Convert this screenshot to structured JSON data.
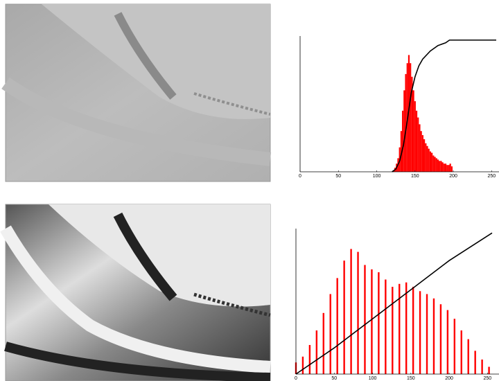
{
  "chart_data": [
    {
      "type": "bar",
      "x": [
        122,
        124,
        126,
        128,
        130,
        132,
        134,
        136,
        138,
        140,
        142,
        144,
        146,
        148,
        150,
        152,
        154,
        156,
        158,
        160,
        162,
        164,
        166,
        168,
        170,
        172,
        174,
        176,
        178,
        180,
        182,
        184,
        186,
        188,
        190,
        192,
        194,
        196,
        198
      ],
      "values": [
        1,
        3,
        6,
        10,
        18,
        30,
        45,
        60,
        72,
        80,
        86,
        80,
        70,
        60,
        52,
        45,
        40,
        35,
        30,
        27,
        24,
        21,
        19,
        17,
        15,
        14,
        12,
        11,
        10,
        9,
        8,
        8,
        7,
        6,
        6,
        5,
        5,
        6,
        4
      ],
      "color": "#ff0000",
      "line": {
        "x": [
          120,
          125,
          130,
          135,
          140,
          145,
          150,
          155,
          160,
          170,
          180,
          190,
          195,
          200,
          256
        ],
        "values": [
          0,
          2,
          8,
          20,
          38,
          58,
          70,
          78,
          83,
          89,
          93,
          95,
          97,
          97,
          97
        ],
        "color": "#000000"
      },
      "xlim": [
        0,
        256
      ],
      "xticks": [
        0,
        50,
        100,
        150,
        200,
        250
      ],
      "ylim": [
        0,
        100
      ]
    },
    {
      "type": "bar",
      "x": [
        0,
        9,
        18,
        27,
        36,
        45,
        54,
        63,
        72,
        81,
        90,
        99,
        108,
        117,
        126,
        135,
        144,
        153,
        162,
        171,
        180,
        189,
        198,
        207,
        216,
        225,
        234,
        243,
        252
      ],
      "values": [
        8,
        12,
        20,
        30,
        42,
        55,
        66,
        78,
        86,
        84,
        75,
        72,
        70,
        65,
        60,
        62,
        63,
        60,
        57,
        55,
        52,
        48,
        44,
        38,
        30,
        24,
        16,
        10,
        5
      ],
      "color": "#ff0000",
      "line": {
        "x": [
          0,
          50,
          100,
          150,
          200,
          256
        ],
        "values": [
          0,
          18,
          38,
          58,
          78,
          97
        ],
        "color": "#000000"
      },
      "xlim": [
        0,
        256
      ],
      "xticks": [
        0,
        50,
        100,
        150,
        200,
        250
      ],
      "ylim": [
        0,
        100
      ]
    }
  ]
}
